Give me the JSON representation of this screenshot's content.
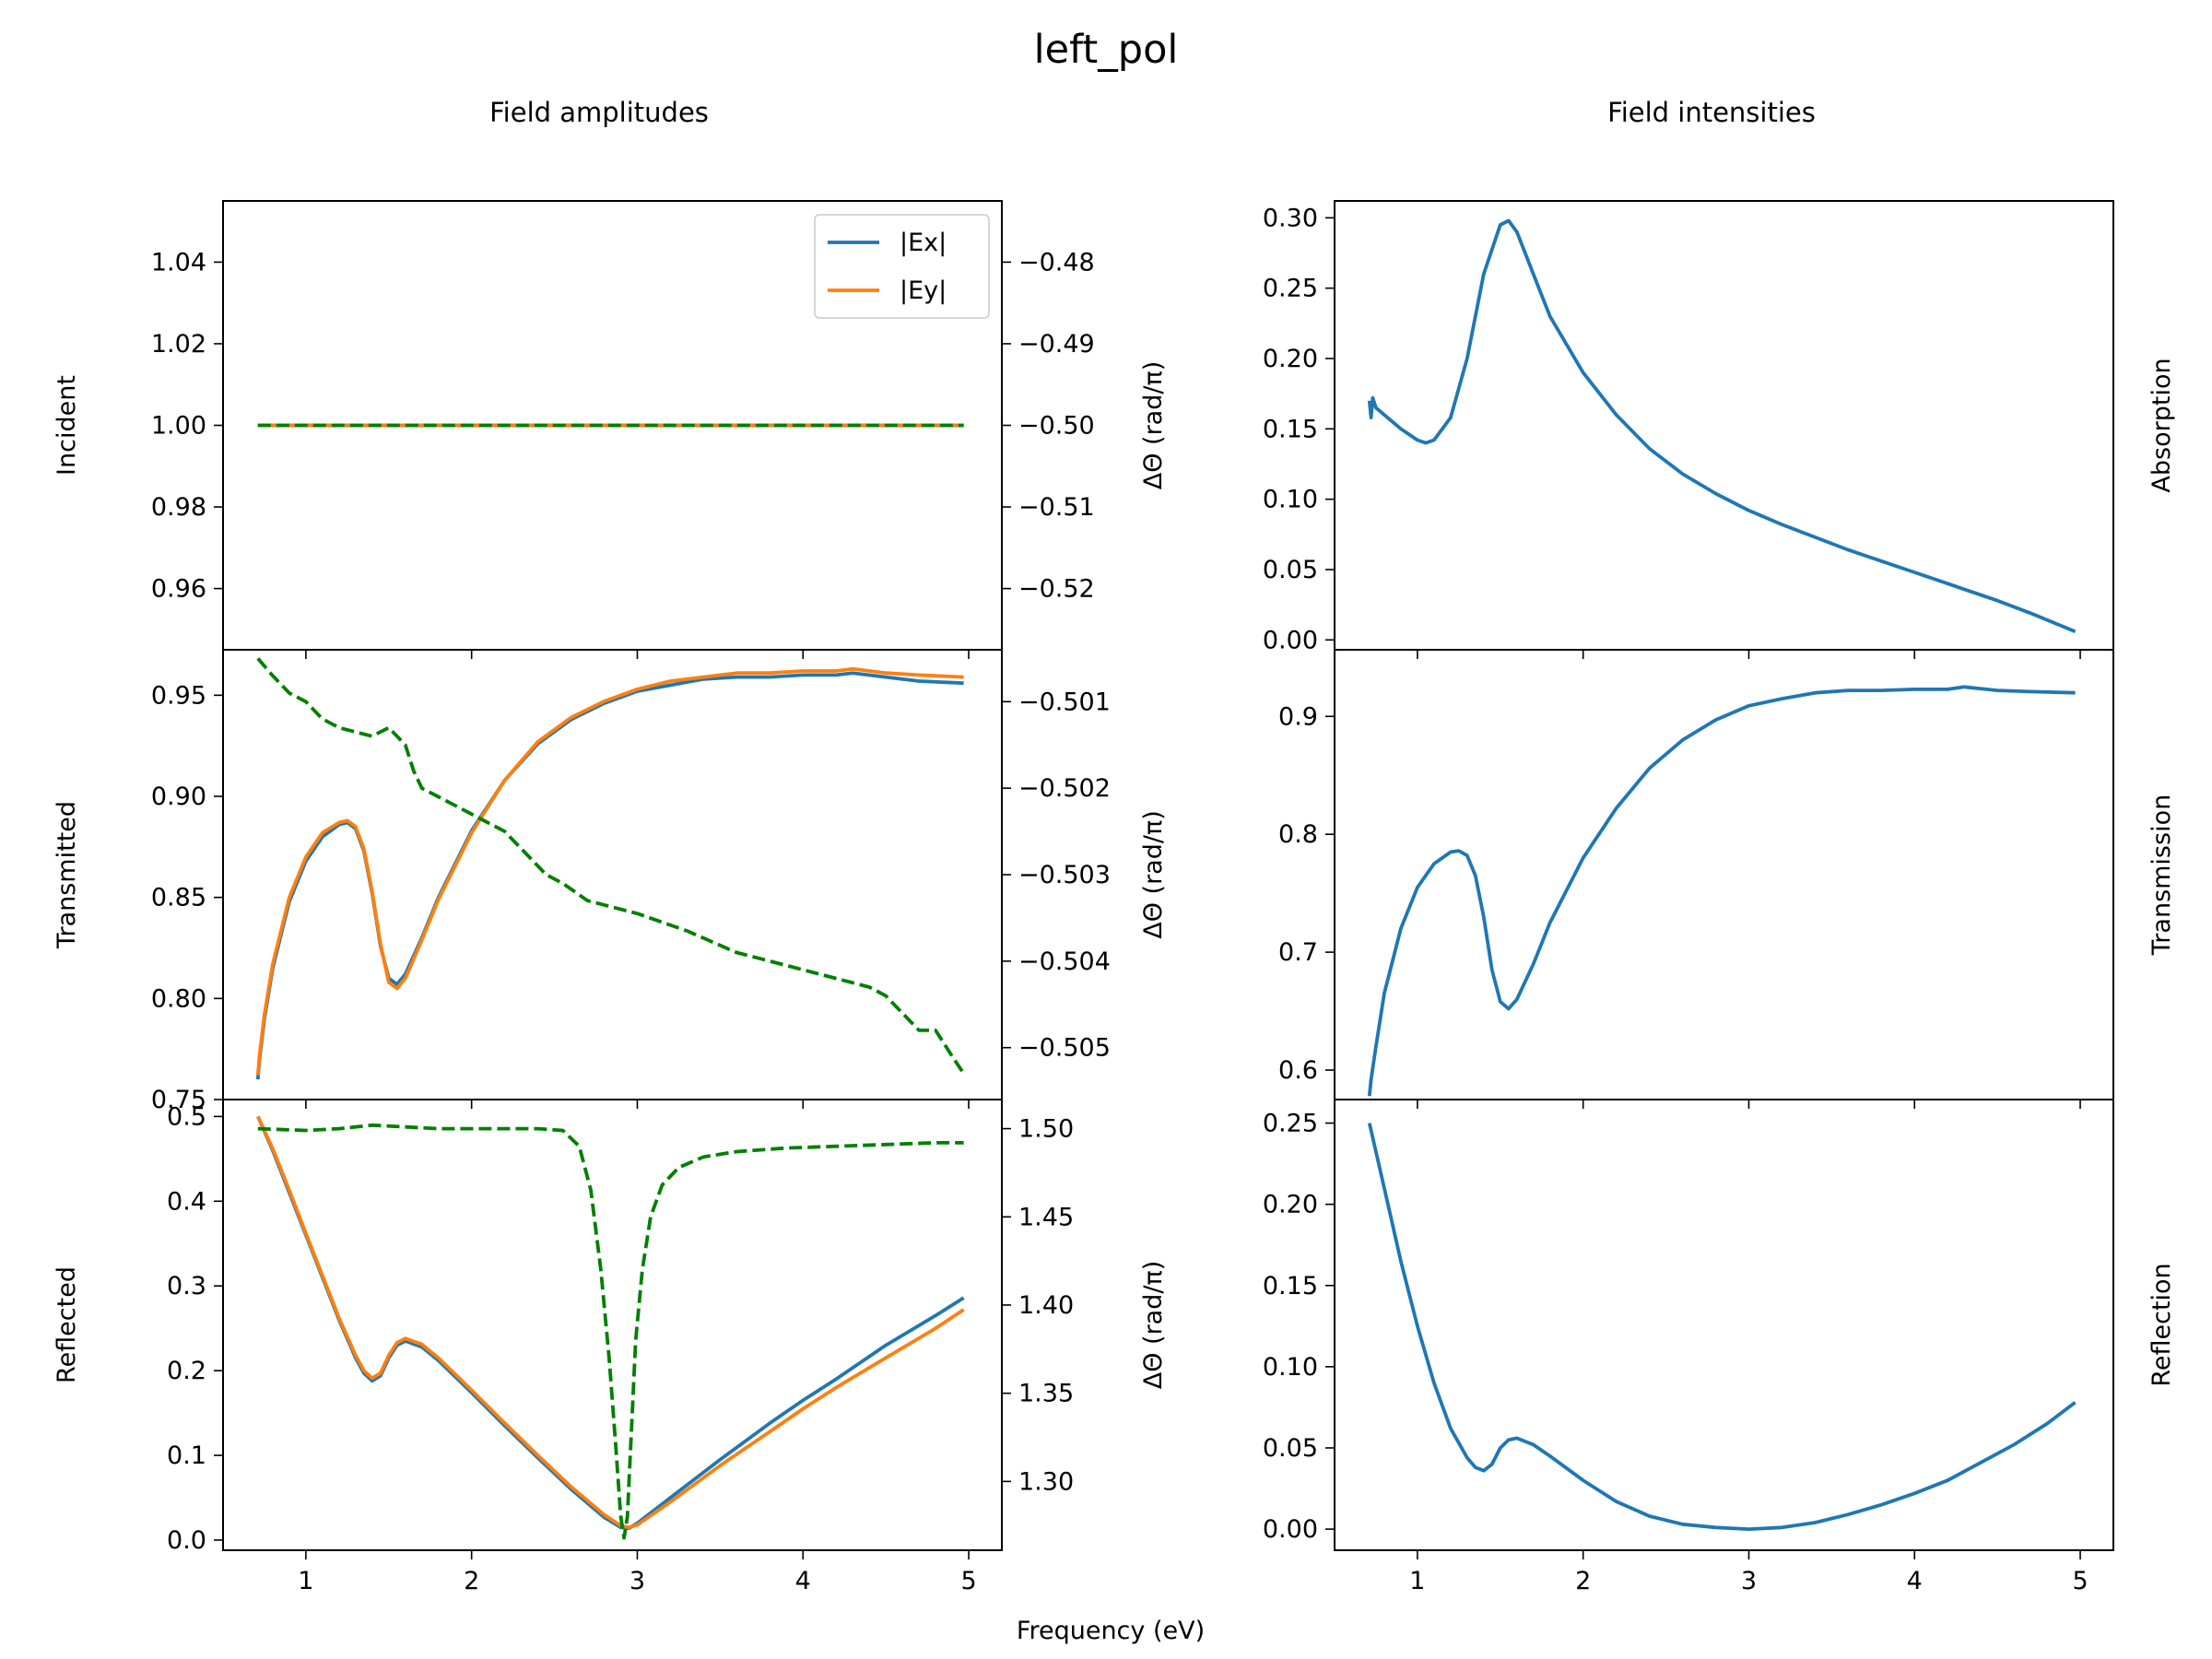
{
  "figure": {
    "title": "left_pol",
    "column_titles": [
      "Field amplitudes",
      "Field intensities"
    ],
    "shared_xlabel": "Frequency (eV)"
  },
  "colors": {
    "ex": "#1f77b4",
    "ey": "#ff7f0e",
    "phase": "#008000",
    "intensity": "#1f77b4"
  },
  "chart_data": [
    {
      "id": "incident",
      "type": "line",
      "title": "",
      "xlabel": "",
      "ylabel": "Incident",
      "y2label": "ΔΘ (rad/π)",
      "xlim": [
        0.5,
        5.2
      ],
      "ylim": [
        0.945,
        1.055
      ],
      "y2lim": [
        -0.5275,
        -0.4725
      ],
      "yticks": [
        0.96,
        0.98,
        1.0,
        1.02,
        1.04
      ],
      "ytick_labels": [
        "0.96",
        "0.98",
        "1.00",
        "1.02",
        "1.04"
      ],
      "y2ticks": [
        -0.52,
        -0.51,
        -0.5,
        -0.49,
        -0.48
      ],
      "y2tick_labels": [
        "−0.52",
        "−0.51",
        "−0.50",
        "−0.49",
        "−0.48"
      ],
      "xticks": [
        1,
        2,
        3,
        4,
        5
      ],
      "xtick_labels": [
        "",
        "",
        "",
        "",
        ""
      ],
      "legend": {
        "placement": "top-right",
        "entries": [
          "|Ex|",
          "|Ey|"
        ]
      },
      "series": [
        {
          "name": "|Ex|",
          "axis": "left",
          "style": "solid",
          "color_key": "ex",
          "x": [
            0.71,
            1.5,
            2.5,
            3.5,
            4.5,
            4.97
          ],
          "y": [
            1.0,
            1.0,
            1.0,
            1.0,
            1.0,
            1.0
          ]
        },
        {
          "name": "|Ey|",
          "axis": "left",
          "style": "solid",
          "color_key": "ey",
          "x": [
            0.71,
            1.5,
            2.5,
            3.5,
            4.5,
            4.97
          ],
          "y": [
            1.0,
            1.0,
            1.0,
            1.0,
            1.0,
            1.0
          ]
        },
        {
          "axis": "right",
          "style": "dashed",
          "color_key": "phase",
          "x": [
            0.71,
            1.5,
            2.5,
            3.5,
            4.5,
            4.97
          ],
          "y": [
            -0.5,
            -0.5,
            -0.5,
            -0.5,
            -0.5,
            -0.5
          ]
        }
      ]
    },
    {
      "id": "transmitted",
      "type": "line",
      "title": "",
      "xlabel": "",
      "ylabel": "Transmitted",
      "y2label": "ΔΘ (rad/π)",
      "xlim": [
        0.5,
        5.2
      ],
      "ylim": [
        0.75,
        0.9725
      ],
      "y2lim": [
        -0.5056,
        -0.5004
      ],
      "yticks": [
        0.75,
        0.8,
        0.85,
        0.9,
        0.95
      ],
      "ytick_labels": [
        "0.75",
        "0.80",
        "0.85",
        "0.90",
        "0.95"
      ],
      "y2ticks": [
        -0.505,
        -0.504,
        -0.503,
        -0.502,
        -0.501
      ],
      "y2tick_labels": [
        "−0.505",
        "−0.504",
        "−0.503",
        "−0.502",
        "−0.501"
      ],
      "xticks": [
        1,
        2,
        3,
        4,
        5
      ],
      "xtick_labels": [
        "",
        "",
        "",
        "",
        ""
      ],
      "series": [
        {
          "name": "|Ex|",
          "axis": "left",
          "style": "solid",
          "color_key": "ex",
          "x": [
            0.71,
            0.72,
            0.75,
            0.8,
            0.9,
            1.0,
            1.1,
            1.2,
            1.25,
            1.3,
            1.35,
            1.4,
            1.45,
            1.5,
            1.55,
            1.6,
            1.7,
            1.8,
            2.0,
            2.2,
            2.4,
            2.6,
            2.8,
            3.0,
            3.2,
            3.4,
            3.6,
            3.8,
            4.0,
            4.2,
            4.3,
            4.5,
            4.7,
            4.97
          ],
          "y": [
            0.76,
            0.77,
            0.79,
            0.815,
            0.848,
            0.868,
            0.88,
            0.886,
            0.887,
            0.884,
            0.873,
            0.852,
            0.826,
            0.81,
            0.807,
            0.812,
            0.83,
            0.85,
            0.883,
            0.908,
            0.926,
            0.938,
            0.946,
            0.952,
            0.955,
            0.958,
            0.959,
            0.959,
            0.96,
            0.96,
            0.961,
            0.959,
            0.957,
            0.956
          ]
        },
        {
          "name": "|Ey|",
          "axis": "left",
          "style": "solid",
          "color_key": "ey",
          "x": [
            0.71,
            0.72,
            0.75,
            0.8,
            0.9,
            1.0,
            1.1,
            1.2,
            1.25,
            1.3,
            1.35,
            1.4,
            1.45,
            1.5,
            1.55,
            1.6,
            1.7,
            1.8,
            2.0,
            2.2,
            2.4,
            2.6,
            2.8,
            3.0,
            3.2,
            3.4,
            3.6,
            3.8,
            4.0,
            4.2,
            4.3,
            4.5,
            4.7,
            4.97
          ],
          "y": [
            0.762,
            0.772,
            0.792,
            0.817,
            0.85,
            0.87,
            0.882,
            0.887,
            0.888,
            0.885,
            0.874,
            0.853,
            0.827,
            0.808,
            0.805,
            0.81,
            0.829,
            0.849,
            0.882,
            0.908,
            0.927,
            0.939,
            0.947,
            0.953,
            0.957,
            0.959,
            0.961,
            0.961,
            0.962,
            0.962,
            0.963,
            0.961,
            0.96,
            0.959
          ]
        },
        {
          "axis": "right",
          "style": "dashed",
          "color_key": "phase",
          "x": [
            0.71,
            0.8,
            0.9,
            1.0,
            1.1,
            1.2,
            1.3,
            1.4,
            1.5,
            1.55,
            1.6,
            1.65,
            1.7,
            1.8,
            2.0,
            2.2,
            2.35,
            2.45,
            2.55,
            2.7,
            3.0,
            3.3,
            3.6,
            3.9,
            4.2,
            4.4,
            4.5,
            4.6,
            4.7,
            4.8,
            4.9,
            4.97
          ],
          "y": [
            -0.5005,
            -0.5007,
            -0.5009,
            -0.501,
            -0.5012,
            -0.5013,
            -0.50135,
            -0.5014,
            -0.5013,
            -0.5014,
            -0.5015,
            -0.5018,
            -0.502,
            -0.5021,
            -0.5023,
            -0.5025,
            -0.5028,
            -0.503,
            -0.5031,
            -0.5033,
            -0.50345,
            -0.50365,
            -0.5039,
            -0.50405,
            -0.5042,
            -0.5043,
            -0.5044,
            -0.5046,
            -0.5048,
            -0.5048,
            -0.5051,
            -0.5053
          ]
        }
      ]
    },
    {
      "id": "reflected",
      "type": "line",
      "title": "",
      "xlabel": "",
      "ylabel": "Reflected",
      "y2label": "ΔΘ (rad/π)",
      "xlim": [
        0.5,
        5.2
      ],
      "ylim": [
        -0.012,
        0.52
      ],
      "y2lim": [
        1.261,
        1.5165
      ],
      "yticks": [
        0.0,
        0.1,
        0.2,
        0.3,
        0.4,
        0.5
      ],
      "ytick_labels": [
        "0.0",
        "0.1",
        "0.2",
        "0.3",
        "0.4",
        "0.5"
      ],
      "y2ticks": [
        1.3,
        1.35,
        1.4,
        1.45,
        1.5
      ],
      "y2tick_labels": [
        "1.30",
        "1.35",
        "1.40",
        "1.45",
        "1.50"
      ],
      "xticks": [
        1,
        2,
        3,
        4,
        5
      ],
      "xtick_labels": [
        "1",
        "2",
        "3",
        "4",
        "5"
      ],
      "series": [
        {
          "name": "|Ex|",
          "axis": "left",
          "style": "solid",
          "color_key": "ex",
          "x": [
            0.71,
            0.8,
            0.9,
            1.0,
            1.1,
            1.2,
            1.3,
            1.35,
            1.4,
            1.45,
            1.5,
            1.55,
            1.6,
            1.7,
            1.8,
            2.0,
            2.2,
            2.4,
            2.6,
            2.8,
            2.9,
            2.95,
            3.0,
            3.2,
            3.5,
            3.8,
            4.0,
            4.2,
            4.5,
            4.8,
            4.97
          ],
          "y": [
            0.5,
            0.46,
            0.41,
            0.36,
            0.31,
            0.26,
            0.215,
            0.197,
            0.188,
            0.194,
            0.215,
            0.23,
            0.235,
            0.228,
            0.212,
            0.174,
            0.135,
            0.097,
            0.06,
            0.027,
            0.015,
            0.014,
            0.02,
            0.05,
            0.095,
            0.138,
            0.165,
            0.19,
            0.23,
            0.265,
            0.286
          ]
        },
        {
          "name": "|Ey|",
          "axis": "left",
          "style": "solid",
          "color_key": "ey",
          "x": [
            0.71,
            0.8,
            0.9,
            1.0,
            1.1,
            1.2,
            1.3,
            1.35,
            1.4,
            1.45,
            1.5,
            1.55,
            1.6,
            1.7,
            1.8,
            2.0,
            2.2,
            2.4,
            2.6,
            2.8,
            2.9,
            2.95,
            3.0,
            3.2,
            3.5,
            3.8,
            4.0,
            4.2,
            4.5,
            4.8,
            4.97
          ],
          "y": [
            0.5,
            0.462,
            0.413,
            0.362,
            0.312,
            0.262,
            0.218,
            0.2,
            0.191,
            0.197,
            0.218,
            0.233,
            0.238,
            0.231,
            0.215,
            0.177,
            0.138,
            0.1,
            0.063,
            0.03,
            0.017,
            0.015,
            0.018,
            0.045,
            0.088,
            0.128,
            0.155,
            0.18,
            0.215,
            0.25,
            0.272
          ]
        },
        {
          "axis": "right",
          "style": "dashed",
          "color_key": "phase",
          "x": [
            0.71,
            1.0,
            1.2,
            1.4,
            1.6,
            1.8,
            2.0,
            2.2,
            2.4,
            2.55,
            2.65,
            2.72,
            2.78,
            2.83,
            2.87,
            2.9,
            2.92,
            2.94,
            2.96,
            2.99,
            3.03,
            3.08,
            3.15,
            3.25,
            3.4,
            3.6,
            3.9,
            4.2,
            4.5,
            4.8,
            4.97
          ],
          "y": [
            1.5,
            1.499,
            1.5,
            1.502,
            1.501,
            1.5,
            1.5,
            1.5,
            1.5,
            1.499,
            1.49,
            1.465,
            1.42,
            1.37,
            1.32,
            1.28,
            1.268,
            1.28,
            1.32,
            1.38,
            1.42,
            1.45,
            1.468,
            1.478,
            1.484,
            1.487,
            1.489,
            1.49,
            1.491,
            1.492,
            1.492
          ]
        }
      ]
    },
    {
      "id": "absorption",
      "type": "line",
      "title": "",
      "xlabel": "",
      "ylabel": "Absorption",
      "xlim": [
        0.5,
        5.2
      ],
      "ylim": [
        -0.007,
        0.312
      ],
      "yticks": [
        0.0,
        0.05,
        0.1,
        0.15,
        0.2,
        0.25,
        0.3
      ],
      "ytick_labels": [
        "0.00",
        "0.05",
        "0.10",
        "0.15",
        "0.20",
        "0.25",
        "0.30"
      ],
      "xticks": [
        1,
        2,
        3,
        4,
        5
      ],
      "xtick_labels": [
        "",
        "",
        "",
        "",
        ""
      ],
      "series": [
        {
          "axis": "left",
          "style": "solid",
          "color_key": "intensity",
          "x": [
            0.71,
            0.72,
            0.73,
            0.75,
            0.8,
            0.9,
            1.0,
            1.05,
            1.1,
            1.2,
            1.3,
            1.4,
            1.5,
            1.55,
            1.6,
            1.7,
            1.8,
            2.0,
            2.2,
            2.4,
            2.6,
            2.8,
            3.0,
            3.2,
            3.4,
            3.6,
            3.8,
            4.0,
            4.2,
            4.3,
            4.5,
            4.7,
            4.97
          ],
          "y": [
            0.17,
            0.158,
            0.172,
            0.165,
            0.16,
            0.15,
            0.142,
            0.14,
            0.142,
            0.158,
            0.2,
            0.26,
            0.295,
            0.298,
            0.29,
            0.26,
            0.23,
            0.19,
            0.16,
            0.136,
            0.118,
            0.104,
            0.092,
            0.082,
            0.073,
            0.064,
            0.056,
            0.048,
            0.04,
            0.036,
            0.028,
            0.019,
            0.006
          ]
        }
      ]
    },
    {
      "id": "transmission",
      "type": "line",
      "title": "",
      "xlabel": "",
      "ylabel": "Transmission",
      "xlim": [
        0.5,
        5.2
      ],
      "ylim": [
        0.575,
        0.9565
      ],
      "yticks": [
        0.6,
        0.7,
        0.8,
        0.9
      ],
      "ytick_labels": [
        "0.6",
        "0.7",
        "0.8",
        "0.9"
      ],
      "xticks": [
        1,
        2,
        3,
        4,
        5
      ],
      "xtick_labels": [
        "",
        "",
        "",
        "",
        ""
      ],
      "series": [
        {
          "axis": "left",
          "style": "solid",
          "color_key": "intensity",
          "x": [
            0.71,
            0.72,
            0.75,
            0.8,
            0.9,
            1.0,
            1.1,
            1.2,
            1.25,
            1.3,
            1.35,
            1.4,
            1.45,
            1.5,
            1.55,
            1.6,
            1.7,
            1.8,
            2.0,
            2.2,
            2.4,
            2.6,
            2.8,
            3.0,
            3.2,
            3.4,
            3.6,
            3.8,
            4.0,
            4.2,
            4.3,
            4.5,
            4.7,
            4.97
          ],
          "y": [
            0.578,
            0.592,
            0.62,
            0.665,
            0.72,
            0.755,
            0.775,
            0.785,
            0.786,
            0.782,
            0.765,
            0.73,
            0.685,
            0.658,
            0.652,
            0.66,
            0.69,
            0.725,
            0.78,
            0.822,
            0.856,
            0.88,
            0.897,
            0.909,
            0.915,
            0.92,
            0.922,
            0.922,
            0.923,
            0.923,
            0.925,
            0.922,
            0.921,
            0.92
          ]
        }
      ]
    },
    {
      "id": "reflection",
      "type": "line",
      "title": "",
      "xlabel": "",
      "ylabel": "Reflection",
      "xlim": [
        0.5,
        5.2
      ],
      "ylim": [
        -0.013,
        0.2645
      ],
      "yticks": [
        0.0,
        0.05,
        0.1,
        0.15,
        0.2,
        0.25
      ],
      "ytick_labels": [
        "0.00",
        "0.05",
        "0.10",
        "0.15",
        "0.20",
        "0.25"
      ],
      "xticks": [
        1,
        2,
        3,
        4,
        5
      ],
      "xtick_labels": [
        "1",
        "2",
        "3",
        "4",
        "5"
      ],
      "series": [
        {
          "axis": "left",
          "style": "solid",
          "color_key": "intensity",
          "x": [
            0.71,
            0.8,
            0.9,
            1.0,
            1.1,
            1.2,
            1.3,
            1.35,
            1.4,
            1.45,
            1.5,
            1.55,
            1.6,
            1.7,
            1.8,
            2.0,
            2.2,
            2.4,
            2.6,
            2.8,
            3.0,
            3.2,
            3.4,
            3.6,
            3.8,
            4.0,
            4.2,
            4.4,
            4.6,
            4.8,
            4.97
          ],
          "y": [
            0.25,
            0.21,
            0.165,
            0.125,
            0.09,
            0.062,
            0.044,
            0.038,
            0.036,
            0.04,
            0.05,
            0.055,
            0.056,
            0.052,
            0.045,
            0.03,
            0.017,
            0.008,
            0.003,
            0.001,
            0.0,
            0.001,
            0.004,
            0.009,
            0.015,
            0.022,
            0.03,
            0.041,
            0.052,
            0.065,
            0.078
          ]
        }
      ]
    }
  ]
}
